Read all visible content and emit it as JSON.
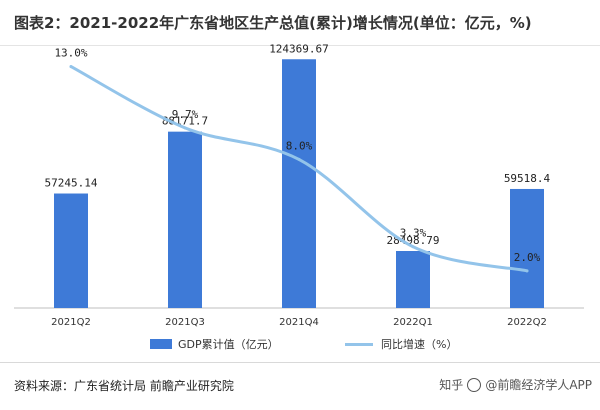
{
  "header": {
    "title": "图表2：2021-2022年广东省地区生产总值(累计)增长情况(单位：亿元，%)"
  },
  "footer": {
    "source": "资料来源：广东省统计局 前瞻产业研究院",
    "credit_left": "知乎",
    "credit_right": "@前瞻经济学人APP"
  },
  "colors": {
    "bar": "#3e7ad7",
    "line": "#93c4ea"
  },
  "chart_data": {
    "type": "bar",
    "categories": [
      "2021Q2",
      "2021Q3",
      "2021Q4",
      "2022Q1",
      "2022Q2"
    ],
    "series": [
      {
        "name": "GDP累计值（亿元）",
        "type": "bar",
        "axis": "left",
        "values": [
          57245.14,
          88171.7,
          124369.67,
          28498.79,
          59518.4
        ],
        "labels": [
          "57245.14",
          "88171.7",
          "124369.67",
          "28498.79",
          "59518.4"
        ]
      },
      {
        "name": "同比增速（%）",
        "type": "line",
        "axis": "right",
        "smooth": true,
        "values": [
          13.0,
          9.7,
          8.0,
          3.3,
          2.0
        ],
        "labels": [
          "13.0%",
          "9.7%",
          "8.0%",
          "3.3%",
          "2.0%"
        ]
      }
    ],
    "ylim_left": [
      0,
      130000
    ],
    "ylim_right": [
      0,
      14
    ],
    "grid": false,
    "legend_position": "bottom"
  }
}
